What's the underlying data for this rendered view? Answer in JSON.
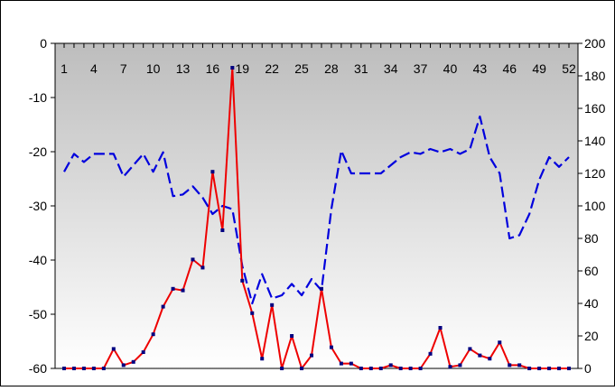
{
  "chart_data": {
    "type": "line",
    "title": "",
    "xlabel": "",
    "ylabel": "",
    "grid": false,
    "legend": "none",
    "background": "gradient-gray",
    "x": [
      1,
      2,
      3,
      4,
      5,
      6,
      7,
      8,
      9,
      10,
      11,
      12,
      13,
      14,
      15,
      16,
      17,
      18,
      19,
      20,
      21,
      22,
      23,
      24,
      25,
      26,
      27,
      28,
      29,
      30,
      31,
      32,
      33,
      34,
      35,
      36,
      37,
      38,
      39,
      40,
      41,
      42,
      43,
      44,
      45,
      46,
      47,
      48,
      49,
      50,
      51,
      52
    ],
    "x_tick_labels": [
      "1",
      "4",
      "7",
      "10",
      "13",
      "16",
      "19",
      "22",
      "25",
      "28",
      "31",
      "34",
      "37",
      "40",
      "43",
      "46",
      "49",
      "52"
    ],
    "x_tick_values": [
      1,
      4,
      7,
      10,
      13,
      16,
      19,
      22,
      25,
      28,
      31,
      34,
      37,
      40,
      43,
      46,
      49,
      52
    ],
    "y_left": {
      "ylim": [
        -60,
        0
      ],
      "ticks": [
        0,
        -10,
        -20,
        -30,
        -40,
        -50,
        -60
      ],
      "tick_labels": [
        "0",
        "-10",
        "-20",
        "-30",
        "-40",
        "-50",
        "-60"
      ]
    },
    "y_right": {
      "ylim": [
        0,
        200
      ],
      "ticks": [
        0,
        20,
        40,
        60,
        80,
        100,
        120,
        140,
        160,
        180,
        200
      ],
      "tick_labels": [
        "0",
        "20",
        "40",
        "60",
        "80",
        "100",
        "120",
        "140",
        "160",
        "180",
        "200"
      ]
    },
    "series": [
      {
        "name": "",
        "axis": "right",
        "style": "dashed",
        "color": "#0000dd",
        "markers": false,
        "values": [
          121,
          132,
          127,
          132,
          132,
          132,
          118,
          125,
          132,
          121,
          133,
          106,
          107,
          112,
          105,
          95,
          100,
          98,
          63,
          40,
          58,
          43,
          45,
          52,
          45,
          55,
          48,
          98,
          134,
          120,
          120,
          120,
          120,
          125,
          130,
          133,
          132,
          135,
          133,
          135,
          132,
          135,
          155,
          130,
          120,
          80,
          82,
          95,
          116,
          130,
          124,
          130
        ]
      },
      {
        "name": "",
        "axis": "right",
        "style": "solid",
        "color": "#ee0000",
        "markers": true,
        "marker_color": "#000080",
        "values": [
          0,
          0,
          0,
          0,
          0,
          12,
          2,
          4,
          10,
          21,
          38,
          49,
          48,
          67,
          62,
          121,
          85,
          185,
          54,
          34,
          6,
          39,
          0,
          20,
          0,
          8,
          49,
          13,
          3,
          3,
          0,
          0,
          0,
          2,
          0,
          0,
          0,
          9,
          25,
          1,
          2,
          12,
          8,
          6,
          16,
          2,
          2,
          0,
          0,
          0,
          0,
          0
        ]
      }
    ]
  }
}
